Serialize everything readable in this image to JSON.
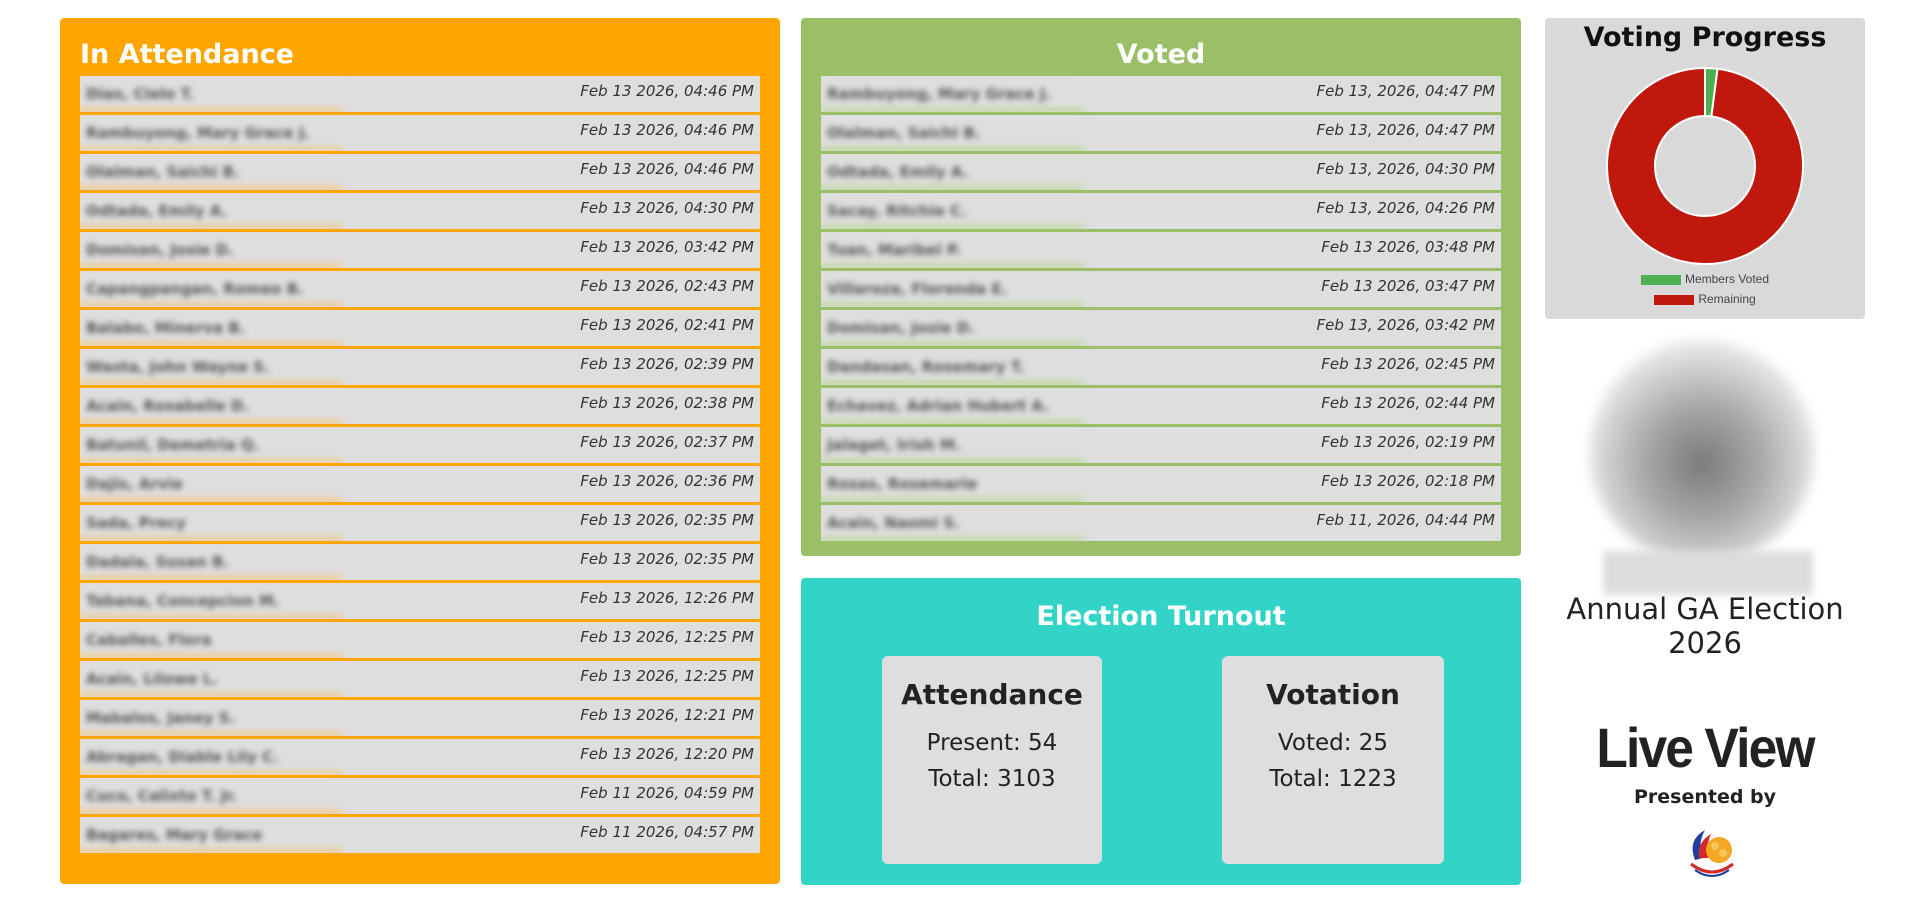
{
  "attendance": {
    "title": "In Attendance",
    "rows": [
      {
        "name": "Dias, Cielo T.",
        "date": "Feb 13 2026, 04:46 PM"
      },
      {
        "name": "Rambuyong, Mary Grace J.",
        "date": "Feb 13 2026, 04:46 PM"
      },
      {
        "name": "Olalman, Saichi B.",
        "date": "Feb 13 2026, 04:46 PM"
      },
      {
        "name": "Odtada, Emily A.",
        "date": "Feb 13 2026, 04:30 PM"
      },
      {
        "name": "Domisan, Josie D.",
        "date": "Feb 13 2026, 03:42 PM"
      },
      {
        "name": "Capangpangan, Romeo B.",
        "date": "Feb 13 2026, 02:43 PM"
      },
      {
        "name": "Balabo, Minerva B.",
        "date": "Feb 13 2026, 02:41 PM"
      },
      {
        "name": "Wasta, John Wayne S.",
        "date": "Feb 13 2026, 02:39 PM"
      },
      {
        "name": "Acain, Rosabelle D.",
        "date": "Feb 13 2026, 02:38 PM"
      },
      {
        "name": "Batunil, Demetria Q.",
        "date": "Feb 13 2026, 02:37 PM"
      },
      {
        "name": "Dajis, Arvie",
        "date": "Feb 13 2026, 02:36 PM"
      },
      {
        "name": "Sada, Precy",
        "date": "Feb 13 2026, 02:35 PM"
      },
      {
        "name": "Dadala, Susan B.",
        "date": "Feb 13 2026, 02:35 PM"
      },
      {
        "name": "Tabana, Concepcion M.",
        "date": "Feb 13 2026, 12:26 PM"
      },
      {
        "name": "Caballes, Flora",
        "date": "Feb 13 2026, 12:25 PM"
      },
      {
        "name": "Acain, Lilowe L.",
        "date": "Feb 13 2026, 12:25 PM"
      },
      {
        "name": "Mabalos, Janey S.",
        "date": "Feb 13 2026, 12:21 PM"
      },
      {
        "name": "Abragan, Diable Lily C.",
        "date": "Feb 13 2026, 12:20 PM"
      },
      {
        "name": "Cuco, Calixto T. Jr.",
        "date": "Feb 11 2026, 04:59 PM"
      },
      {
        "name": "Bagares, Mary Grace",
        "date": "Feb 11 2026, 04:57 PM"
      }
    ]
  },
  "voted": {
    "title": "Voted",
    "rows": [
      {
        "name": "Rambuyong, Mary Grace J.",
        "date": "Feb 13, 2026, 04:47 PM"
      },
      {
        "name": "Olalman, Saichi B.",
        "date": "Feb 13, 2026, 04:47 PM"
      },
      {
        "name": "Odtada, Emily A.",
        "date": "Feb 13, 2026, 04:30 PM"
      },
      {
        "name": "Sacay, Ritchie C.",
        "date": "Feb 13, 2026, 04:26 PM"
      },
      {
        "name": "Tuan, Maribel P.",
        "date": "Feb 13 2026, 03:48 PM"
      },
      {
        "name": "Villaroza, Florenda E.",
        "date": "Feb 13 2026, 03:47 PM"
      },
      {
        "name": "Domisan, Josie D.",
        "date": "Feb 13, 2026, 03:42 PM"
      },
      {
        "name": "Dandasan, Rosemary T.",
        "date": "Feb 13 2026, 02:45 PM"
      },
      {
        "name": "Echavez, Adrian Hubert A.",
        "date": "Feb 13 2026, 02:44 PM"
      },
      {
        "name": "Jalaget, Irish M.",
        "date": "Feb 13 2026, 02:19 PM"
      },
      {
        "name": "Rosas, Rosemarie",
        "date": "Feb 13 2026, 02:18 PM"
      },
      {
        "name": "Acain, Naomi S.",
        "date": "Feb 11, 2026, 04:44 PM"
      }
    ]
  },
  "turnout": {
    "title": "Election Turnout",
    "attendance": {
      "title": "Attendance",
      "present_label": "Present:",
      "present": "54",
      "total_label": "Total:",
      "total": "3103"
    },
    "votation": {
      "title": "Votation",
      "voted_label": "Voted:",
      "voted": "25",
      "total_label": "Total:",
      "total": "1223"
    }
  },
  "progress": {
    "title": "Voting Progress",
    "legend_voted": "Members Voted",
    "legend_remaining": "Remaining"
  },
  "chart_data": {
    "type": "pie",
    "categories": [
      "Members Voted",
      "Remaining"
    ],
    "values": [
      25,
      1198
    ],
    "colors": [
      "#4caf50",
      "#c0180c"
    ],
    "legend": "bottom"
  },
  "event": {
    "title": "Annual GA Election 2026",
    "live_label": "Live View",
    "presented_by": "Presented by"
  },
  "icons": {
    "avatar": "avatar-image",
    "logo": "coop-logo"
  }
}
